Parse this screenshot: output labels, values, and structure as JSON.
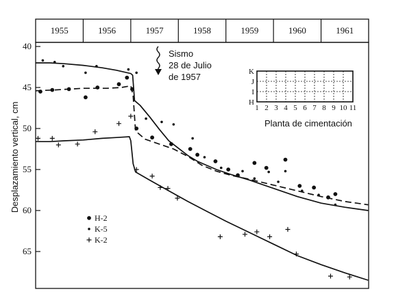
{
  "chart_data": {
    "type": "scatter",
    "title": "",
    "xlabel": "",
    "ylabel": "Desplazamiento vertical, cm",
    "years": [
      "1955",
      "1956",
      "1957",
      "1958",
      "1959",
      "1960",
      "1961"
    ],
    "xlim": [
      1955,
      1962
    ],
    "ylim": [
      69.5,
      39.5
    ],
    "yticks": [
      40,
      45,
      50,
      55,
      60,
      65
    ],
    "annotation": {
      "lines": [
        "Sismo",
        "28 de Julio",
        "de 1957"
      ],
      "x": 1957.2,
      "arrow_target_y": 43.0
    },
    "series": [
      {
        "name": "H-2",
        "marker": "large-dot",
        "points": [
          [
            1955.1,
            45.5
          ],
          [
            1955.35,
            45.3
          ],
          [
            1955.7,
            45.2
          ],
          [
            1956.05,
            46.2
          ],
          [
            1956.3,
            45.0
          ],
          [
            1956.75,
            44.6
          ],
          [
            1956.92,
            43.8
          ],
          [
            1957.03,
            45.2
          ],
          [
            1957.12,
            50.0
          ],
          [
            1957.45,
            51.1
          ],
          [
            1957.85,
            51.9
          ],
          [
            1958.25,
            52.5
          ],
          [
            1958.4,
            53.2
          ],
          [
            1958.78,
            54.0
          ],
          [
            1959.05,
            55.0
          ],
          [
            1959.25,
            55.7
          ],
          [
            1959.6,
            54.2
          ],
          [
            1959.85,
            54.8
          ],
          [
            1960.25,
            53.8
          ],
          [
            1960.55,
            57.0
          ],
          [
            1960.85,
            57.2
          ],
          [
            1961.15,
            58.4
          ],
          [
            1961.3,
            58.0
          ]
        ]
      },
      {
        "name": "K-5",
        "marker": "small-dot",
        "points": [
          [
            1955.15,
            41.7
          ],
          [
            1955.4,
            41.9
          ],
          [
            1955.58,
            42.4
          ],
          [
            1956.05,
            43.2
          ],
          [
            1956.28,
            42.4
          ],
          [
            1956.95,
            42.8
          ],
          [
            1957.12,
            43.2
          ],
          [
            1957.32,
            48.8
          ],
          [
            1957.65,
            49.2
          ],
          [
            1957.9,
            49.5
          ],
          [
            1958.3,
            51.2
          ],
          [
            1958.55,
            53.5
          ],
          [
            1958.9,
            54.8
          ],
          [
            1959.35,
            55.2
          ],
          [
            1959.6,
            56.1
          ],
          [
            1959.9,
            55.3
          ],
          [
            1960.1,
            56.5
          ],
          [
            1960.25,
            55.2
          ],
          [
            1960.6,
            57.6
          ],
          [
            1960.95,
            58.1
          ],
          [
            1961.3,
            59.3
          ]
        ]
      },
      {
        "name": "K-2",
        "marker": "cross",
        "points": [
          [
            1955.05,
            51.2
          ],
          [
            1955.35,
            51.2
          ],
          [
            1955.48,
            52.0
          ],
          [
            1955.88,
            51.9
          ],
          [
            1956.25,
            50.4
          ],
          [
            1956.75,
            49.4
          ],
          [
            1957.0,
            48.5
          ],
          [
            1957.12,
            55.0
          ],
          [
            1957.45,
            55.8
          ],
          [
            1957.62,
            57.2
          ],
          [
            1957.78,
            57.3
          ],
          [
            1957.98,
            58.5
          ],
          [
            1958.88,
            63.2
          ],
          [
            1959.4,
            62.9
          ],
          [
            1959.65,
            62.6
          ],
          [
            1959.92,
            63.2
          ],
          [
            1960.3,
            62.3
          ],
          [
            1960.48,
            65.3
          ],
          [
            1961.2,
            68.0
          ],
          [
            1961.6,
            68.1
          ]
        ]
      }
    ],
    "curves": [
      {
        "name": "H-2",
        "style": "dashed",
        "points": [
          [
            1955.0,
            45.4
          ],
          [
            1955.4,
            45.3
          ],
          [
            1955.7,
            45.2
          ],
          [
            1956.0,
            45.1
          ],
          [
            1956.5,
            45.1
          ],
          [
            1956.8,
            45.0
          ],
          [
            1957.0,
            44.8
          ],
          [
            1957.05,
            46.0
          ],
          [
            1957.1,
            50.3
          ],
          [
            1957.3,
            51.3
          ],
          [
            1957.6,
            51.9
          ],
          [
            1957.9,
            52.5
          ],
          [
            1958.2,
            53.4
          ],
          [
            1958.5,
            54.5
          ],
          [
            1958.8,
            55.2
          ],
          [
            1959.1,
            55.7
          ],
          [
            1959.5,
            56.2
          ],
          [
            1960.0,
            56.9
          ],
          [
            1960.5,
            57.6
          ],
          [
            1961.0,
            58.3
          ],
          [
            1961.5,
            58.9
          ],
          [
            1961.99,
            59.3
          ]
        ]
      },
      {
        "name": "K-5",
        "style": "solid",
        "points": [
          [
            1955.0,
            42.0
          ],
          [
            1955.3,
            42.0
          ],
          [
            1955.6,
            42.1
          ],
          [
            1956.0,
            42.3
          ],
          [
            1956.4,
            42.6
          ],
          [
            1956.7,
            42.9
          ],
          [
            1957.0,
            43.3
          ],
          [
            1957.04,
            43.5
          ],
          [
            1957.08,
            46.6
          ],
          [
            1957.2,
            47.2
          ],
          [
            1957.4,
            48.6
          ],
          [
            1957.6,
            50.1
          ],
          [
            1957.8,
            51.5
          ],
          [
            1958.0,
            52.4
          ],
          [
            1958.2,
            53.3
          ],
          [
            1958.4,
            54.0
          ],
          [
            1958.6,
            54.5
          ],
          [
            1958.8,
            55.0
          ],
          [
            1959.1,
            55.6
          ],
          [
            1959.5,
            56.3
          ],
          [
            1960.0,
            57.3
          ],
          [
            1960.5,
            58.3
          ],
          [
            1961.0,
            59.1
          ],
          [
            1961.5,
            59.6
          ],
          [
            1961.99,
            60.0
          ]
        ]
      },
      {
        "name": "K-2",
        "style": "solid",
        "points": [
          [
            1955.0,
            51.6
          ],
          [
            1955.3,
            51.6
          ],
          [
            1955.6,
            51.5
          ],
          [
            1956.0,
            51.4
          ],
          [
            1956.4,
            51.2
          ],
          [
            1956.7,
            51.1
          ],
          [
            1956.97,
            51.0
          ],
          [
            1957.0,
            51.5
          ],
          [
            1957.05,
            54.3
          ],
          [
            1957.1,
            55.3
          ],
          [
            1957.4,
            56.3
          ],
          [
            1957.8,
            57.6
          ],
          [
            1958.2,
            58.9
          ],
          [
            1958.6,
            60.1
          ],
          [
            1959.0,
            61.3
          ],
          [
            1959.5,
            62.7
          ],
          [
            1960.0,
            64.1
          ],
          [
            1960.5,
            65.5
          ],
          [
            1961.0,
            66.6
          ],
          [
            1961.5,
            67.6
          ],
          [
            1961.99,
            68.5
          ]
        ]
      }
    ],
    "legend": [
      {
        "label": "H-2",
        "marker": "large-dot"
      },
      {
        "label": "K-5",
        "marker": "small-dot"
      },
      {
        "label": "K-2",
        "marker": "cross"
      }
    ],
    "legend_position": "bottom-left",
    "inset": {
      "title": "Planta de cimentación",
      "rows": [
        "K",
        "J",
        "I",
        "H"
      ],
      "columns": [
        "1",
        "2",
        "3",
        "4",
        "5",
        "6",
        "7",
        "8",
        "9",
        "10",
        "11"
      ]
    }
  }
}
